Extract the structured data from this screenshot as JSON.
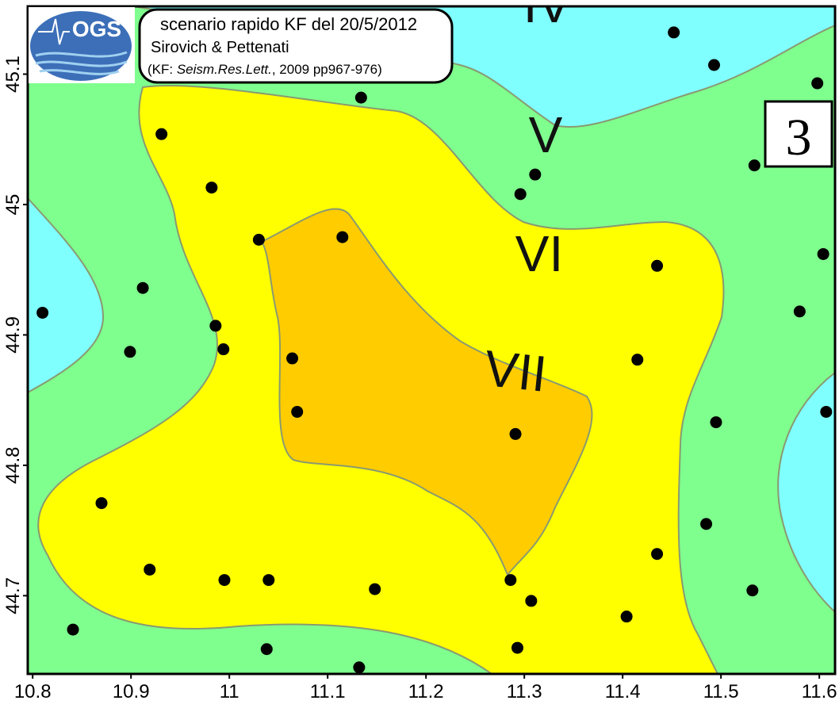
{
  "logo": "OGS",
  "header": {
    "line1": "scenario rapido KF del 20/5/2012",
    "line2": "Sirovich & Pettenati",
    "ref_prefix": "(KF: ",
    "ref_journal": "Seism.Res.Lett.",
    "ref_suffix": ", 2009 pp967-976)"
  },
  "panel": "3",
  "chart_data": {
    "type": "scatter",
    "annotations": [
      "IV",
      "V",
      "VI",
      "VII"
    ],
    "color": "#000000",
    "x": [
      11.452,
      11.493,
      11.598,
      11.134,
      10.931,
      11.534,
      11.311,
      10.982,
      11.296,
      11.03,
      11.115,
      11.435,
      11.604,
      10.912,
      10.81,
      11.58,
      10.986,
      10.994,
      10.899,
      11.064,
      11.415,
      11.069,
      11.291,
      11.607,
      11.495,
      10.87,
      11.485,
      11.435,
      10.919,
      10.995,
      11.04,
      11.148,
      11.286,
      11.532,
      11.307,
      11.404,
      10.841,
      11.038,
      11.293,
      11.132
    ],
    "y": [
      45.132,
      45.107,
      45.093,
      45.082,
      45.054,
      45.03,
      45.023,
      45.013,
      45.008,
      44.973,
      44.975,
      44.953,
      44.962,
      44.936,
      44.917,
      44.918,
      44.907,
      44.889,
      44.887,
      44.882,
      44.881,
      44.841,
      44.824,
      44.841,
      44.833,
      44.771,
      44.755,
      44.732,
      44.72,
      44.712,
      44.712,
      44.705,
      44.712,
      44.704,
      44.696,
      44.684,
      44.674,
      44.659,
      44.66,
      44.645
    ],
    "xlim": [
      10.795,
      11.616
    ],
    "ylim": [
      44.64,
      45.152
    ],
    "xticks": [
      10.8,
      10.9,
      11,
      11.1,
      11.2,
      11.3,
      11.4,
      11.5,
      11.6
    ],
    "yticks": [
      44.7,
      44.8,
      44.9,
      45,
      45.1
    ]
  }
}
